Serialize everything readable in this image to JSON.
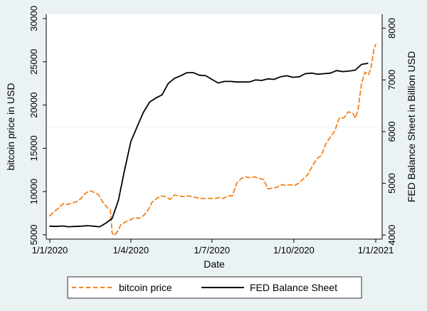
{
  "chart_data": {
    "type": "line",
    "xlabel": "Date",
    "ylabel_left": "bitcoin price in USD",
    "ylabel_right": "FED Balance Sheet in Billion USD",
    "x_ticks": [
      "1/1/2020",
      "1/4/2020",
      "1/7/2020",
      "1/10/2020",
      "1/1/2021"
    ],
    "x_tick_days": [
      0,
      91,
      182,
      274,
      366
    ],
    "xlim_days": [
      0,
      366
    ],
    "y_left": {
      "ticks": [
        5000,
        10000,
        15000,
        20000,
        25000,
        30000
      ],
      "ylim": [
        4500,
        30500
      ]
    },
    "y_right": {
      "ticks": [
        4000,
        5000,
        6000,
        7000,
        8000
      ],
      "ylim": [
        3920,
        8270
      ]
    },
    "grid_lines_left": [
      17500
    ],
    "legend_position": "bottom",
    "series": [
      {
        "name": "bitcoin price",
        "axis": "left",
        "style": "dashed",
        "color": "#f0821e",
        "points": [
          [
            0,
            7200
          ],
          [
            5,
            7700
          ],
          [
            10,
            8100
          ],
          [
            15,
            8600
          ],
          [
            20,
            8500
          ],
          [
            25,
            8700
          ],
          [
            30,
            8800
          ],
          [
            35,
            9200
          ],
          [
            40,
            9800
          ],
          [
            45,
            10100
          ],
          [
            50,
            9900
          ],
          [
            55,
            9600
          ],
          [
            60,
            8700
          ],
          [
            65,
            8100
          ],
          [
            68,
            7900
          ],
          [
            70,
            5200
          ],
          [
            73,
            4900
          ],
          [
            76,
            5400
          ],
          [
            80,
            6200
          ],
          [
            85,
            6500
          ],
          [
            90,
            6700
          ],
          [
            95,
            7000
          ],
          [
            100,
            6900
          ],
          [
            105,
            7200
          ],
          [
            110,
            7800
          ],
          [
            115,
            8800
          ],
          [
            120,
            9200
          ],
          [
            125,
            9500
          ],
          [
            130,
            9400
          ],
          [
            135,
            9100
          ],
          [
            140,
            9600
          ],
          [
            145,
            9500
          ],
          [
            150,
            9400
          ],
          [
            155,
            9500
          ],
          [
            160,
            9400
          ],
          [
            165,
            9300
          ],
          [
            170,
            9200
          ],
          [
            175,
            9200
          ],
          [
            180,
            9200
          ],
          [
            185,
            9200
          ],
          [
            190,
            9300
          ],
          [
            195,
            9200
          ],
          [
            200,
            9500
          ],
          [
            205,
            9500
          ],
          [
            210,
            11000
          ],
          [
            215,
            11500
          ],
          [
            220,
            11700
          ],
          [
            225,
            11600
          ],
          [
            230,
            11700
          ],
          [
            235,
            11500
          ],
          [
            240,
            11400
          ],
          [
            245,
            10300
          ],
          [
            250,
            10400
          ],
          [
            255,
            10500
          ],
          [
            260,
            10800
          ],
          [
            265,
            10700
          ],
          [
            270,
            10800
          ],
          [
            275,
            10700
          ],
          [
            280,
            11000
          ],
          [
            285,
            11500
          ],
          [
            290,
            12000
          ],
          [
            295,
            13000
          ],
          [
            300,
            13800
          ],
          [
            305,
            14200
          ],
          [
            310,
            15500
          ],
          [
            315,
            16300
          ],
          [
            320,
            17000
          ],
          [
            325,
            18500
          ],
          [
            330,
            18500
          ],
          [
            335,
            19200
          ],
          [
            340,
            19100
          ],
          [
            343,
            18500
          ],
          [
            346,
            19400
          ],
          [
            350,
            22500
          ],
          [
            354,
            23800
          ],
          [
            358,
            23500
          ],
          [
            361,
            24500
          ],
          [
            364,
            26500
          ],
          [
            366,
            27000
          ]
        ]
      },
      {
        "name": "FED Balance Sheet",
        "axis": "right",
        "style": "solid",
        "color": "#000000",
        "points": [
          [
            0,
            4170
          ],
          [
            7,
            4165
          ],
          [
            14,
            4175
          ],
          [
            21,
            4160
          ],
          [
            28,
            4165
          ],
          [
            35,
            4170
          ],
          [
            42,
            4180
          ],
          [
            49,
            4170
          ],
          [
            56,
            4160
          ],
          [
            63,
            4230
          ],
          [
            70,
            4320
          ],
          [
            77,
            4670
          ],
          [
            84,
            5260
          ],
          [
            91,
            5810
          ],
          [
            98,
            6090
          ],
          [
            105,
            6370
          ],
          [
            112,
            6570
          ],
          [
            119,
            6650
          ],
          [
            126,
            6710
          ],
          [
            133,
            6930
          ],
          [
            140,
            7030
          ],
          [
            147,
            7080
          ],
          [
            154,
            7140
          ],
          [
            161,
            7140
          ],
          [
            168,
            7090
          ],
          [
            175,
            7080
          ],
          [
            182,
            7010
          ],
          [
            189,
            6940
          ],
          [
            196,
            6970
          ],
          [
            203,
            6970
          ],
          [
            210,
            6960
          ],
          [
            217,
            6960
          ],
          [
            224,
            6960
          ],
          [
            231,
            7000
          ],
          [
            238,
            6990
          ],
          [
            245,
            7020
          ],
          [
            252,
            7010
          ],
          [
            259,
            7060
          ],
          [
            266,
            7080
          ],
          [
            273,
            7050
          ],
          [
            280,
            7060
          ],
          [
            287,
            7120
          ],
          [
            294,
            7130
          ],
          [
            301,
            7110
          ],
          [
            308,
            7120
          ],
          [
            315,
            7130
          ],
          [
            322,
            7180
          ],
          [
            329,
            7160
          ],
          [
            336,
            7170
          ],
          [
            343,
            7190
          ],
          [
            350,
            7300
          ],
          [
            357,
            7320
          ]
        ]
      }
    ]
  }
}
